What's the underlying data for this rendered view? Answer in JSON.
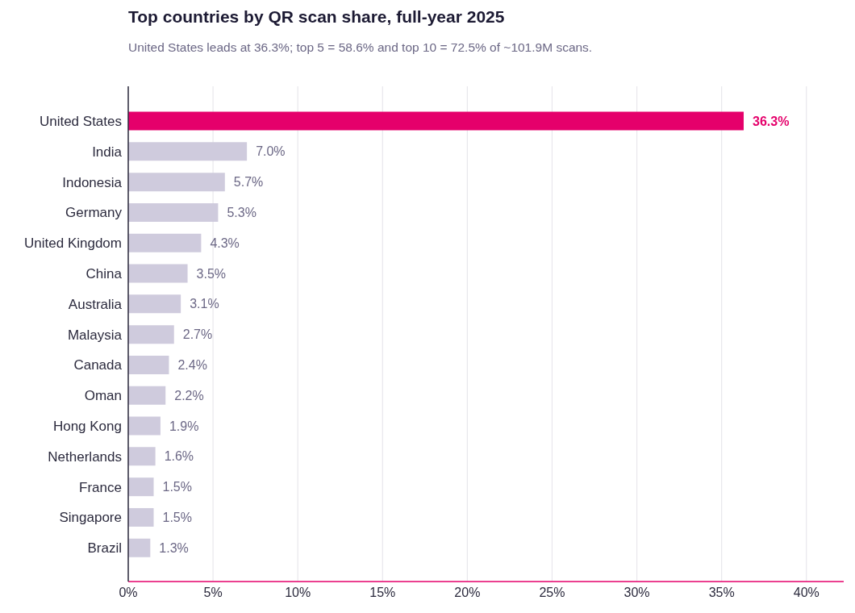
{
  "chart_data": {
    "type": "bar",
    "orientation": "horizontal",
    "title": "Top countries by QR scan share, full-year 2025",
    "subtitle": "United States leads at 36.3%; top 5 = 58.6% and top 10 = 72.5% of ~101.9M scans.",
    "categories": [
      "United States",
      "India",
      "Indonesia",
      "Germany",
      "United Kingdom",
      "China",
      "Australia",
      "Malaysia",
      "Canada",
      "Oman",
      "Hong Kong",
      "Netherlands",
      "France",
      "Singapore",
      "Brazil"
    ],
    "values": [
      36.3,
      7.0,
      5.7,
      5.3,
      4.3,
      3.5,
      3.1,
      2.7,
      2.4,
      2.2,
      1.9,
      1.6,
      1.5,
      1.5,
      1.3
    ],
    "value_labels": [
      "36.3%",
      "7.0%",
      "5.7%",
      "5.3%",
      "4.3%",
      "3.5%",
      "3.1%",
      "2.7%",
      "2.4%",
      "2.2%",
      "1.9%",
      "1.6%",
      "1.5%",
      "1.5%",
      "1.3%"
    ],
    "colors": [
      "#e5006b",
      "#cfcbdd",
      "#cfcbdd",
      "#cfcbdd",
      "#cfcbdd",
      "#cfcbdd",
      "#cfcbdd",
      "#cfcbdd",
      "#cfcbdd",
      "#cfcbdd",
      "#cfcbdd",
      "#cfcbdd",
      "#cfcbdd",
      "#cfcbdd",
      "#cfcbdd"
    ],
    "xlim": [
      0,
      42.2
    ],
    "xticks": [
      {
        "value": 0,
        "label": "0%"
      },
      {
        "value": 5,
        "label": "5%"
      },
      {
        "value": 10,
        "label": "10%"
      },
      {
        "value": 15,
        "label": "15%"
      },
      {
        "value": 20,
        "label": "20%"
      },
      {
        "value": 25,
        "label": "25%"
      },
      {
        "value": 30,
        "label": "30%"
      },
      {
        "value": 35,
        "label": "35%"
      },
      {
        "value": 40,
        "label": "40%"
      }
    ],
    "grid": "x"
  }
}
